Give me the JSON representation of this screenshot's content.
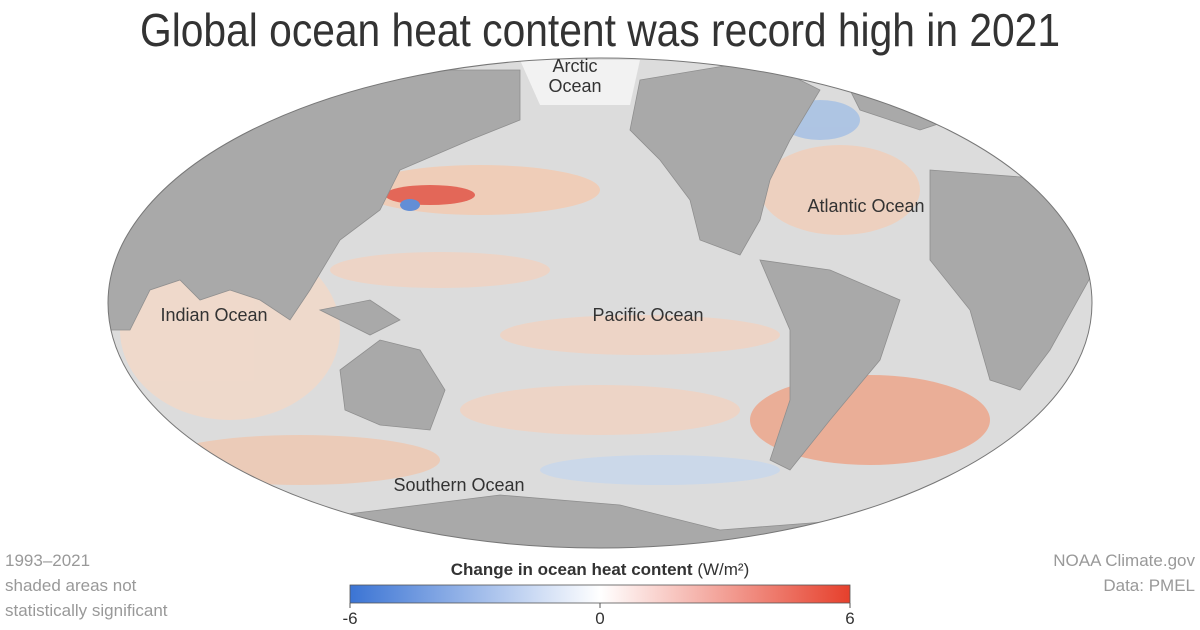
{
  "title": "Global ocean heat content was record high in 2021",
  "labels": [
    "Arctic Ocean",
    "Atlantic Ocean",
    "Indian Ocean",
    "Pacific Ocean",
    "Southern Ocean"
  ],
  "note": [
    "1993–2021",
    "shaded areas not",
    "statistically significant"
  ],
  "credit": [
    "NOAA Climate.gov",
    "Data: PMEL"
  ],
  "legend": {
    "title": "Change in ocean heat content",
    "unit": "(W/m²)",
    "min": -6,
    "max": 6,
    "ticks": [
      -6,
      0,
      6
    ],
    "colors": [
      "#3b74d4",
      "#ffffff",
      "#e6402c"
    ]
  }
}
